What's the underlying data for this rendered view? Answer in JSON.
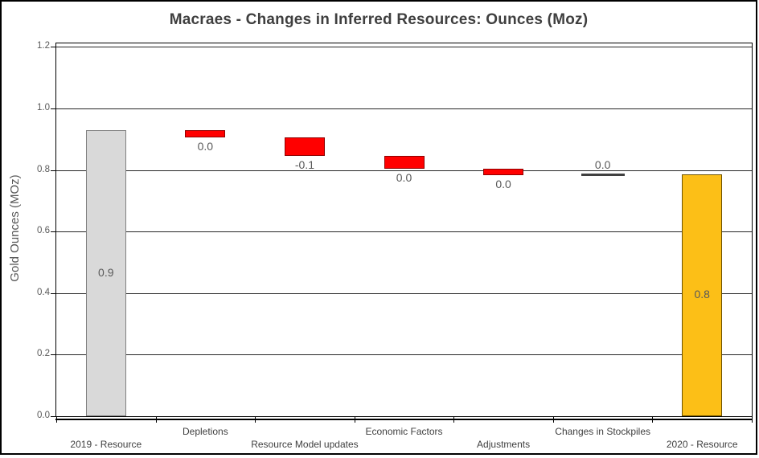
{
  "chart_data": {
    "type": "bar",
    "subtype": "waterfall",
    "title": "Macraes - Changes in Inferred Resources: Ounces (Moz)",
    "ylabel": "Gold Ounces (MOz)",
    "xlabel": "",
    "ylim": [
      0,
      1.2
    ],
    "ytick_labels": [
      "0.0",
      "0.2",
      "0.4",
      "0.6",
      "0.8",
      "1.0",
      "1.2"
    ],
    "grid": true,
    "legend": false,
    "categories": [
      "2019 - Resource",
      "Depletions",
      "Resource Model updates",
      "Economic Factors",
      "Adjustments",
      "Changes in Stockpiles",
      "2020 - Resource"
    ],
    "bars": [
      {
        "category": "2019 - Resource",
        "role": "total-start",
        "from": 0.0,
        "to": 0.93,
        "value_label": "0.9",
        "label_pos": "inside",
        "fill": "#d9d9d9",
        "border": "#7f7f7f"
      },
      {
        "category": "Depletions",
        "role": "decrease",
        "from": 0.905,
        "to": 0.93,
        "value_label": "0.0",
        "label_pos": "below",
        "fill": "#ff0000",
        "border": "#8f0000"
      },
      {
        "category": "Resource Model updates",
        "role": "decrease",
        "from": 0.845,
        "to": 0.905,
        "value_label": "-0.1",
        "label_pos": "below",
        "fill": "#ff0000",
        "border": "#8f0000"
      },
      {
        "category": "Economic Factors",
        "role": "decrease",
        "from": 0.805,
        "to": 0.845,
        "value_label": "0.0",
        "label_pos": "below",
        "fill": "#ff0000",
        "border": "#8f0000"
      },
      {
        "category": "Adjustments",
        "role": "decrease",
        "from": 0.783,
        "to": 0.805,
        "value_label": "0.0",
        "label_pos": "below",
        "fill": "#ff0000",
        "border": "#8f0000"
      },
      {
        "category": "Changes in Stockpiles",
        "role": "zero-change",
        "from": 0.786,
        "to": 0.786,
        "value_label": "0.0",
        "label_pos": "above",
        "fill": "#404040",
        "border": "#404040"
      },
      {
        "category": "2020 - Resource",
        "role": "total-end",
        "from": 0.0,
        "to": 0.786,
        "value_label": "0.8",
        "label_pos": "inside",
        "fill": "#fcbf17",
        "border": "#6e5200"
      }
    ],
    "colors": {
      "total_start_fill": "#d9d9d9",
      "total_start_border": "#7f7f7f",
      "decrease_fill": "#ff0000",
      "decrease_border": "#8f0000",
      "total_end_fill": "#fcbf17",
      "total_end_border": "#6e5200",
      "zero_marker": "#404040",
      "gridline": "#262626",
      "axis_line": "#000000",
      "title_text": "#3f3f3f",
      "axis_text": "#595959",
      "category_text": "#3f3f3f",
      "value_label_text": "#595959"
    }
  }
}
